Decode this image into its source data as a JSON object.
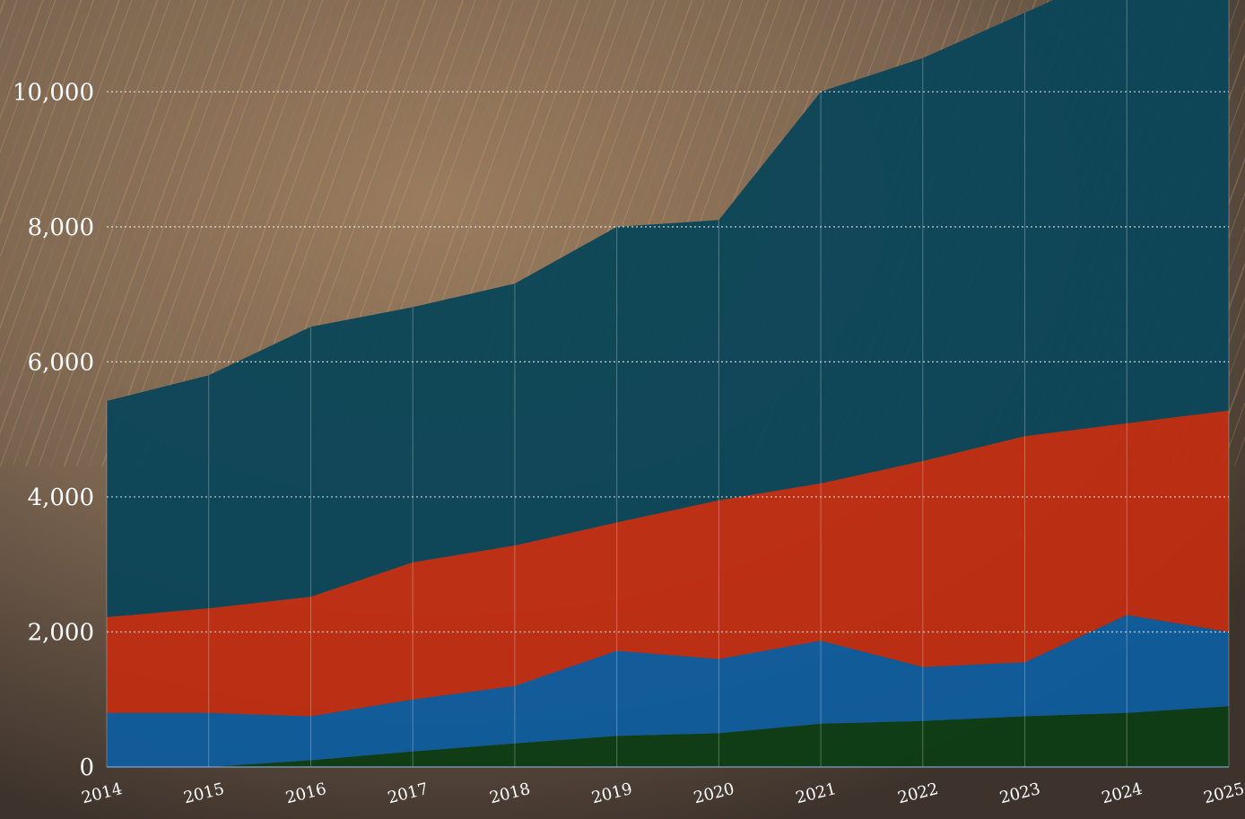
{
  "chart_data": {
    "type": "area",
    "stacked": true,
    "x": [
      "2014",
      "2015",
      "2016",
      "2017",
      "2018",
      "2019",
      "2020",
      "2021",
      "2022",
      "2023",
      "2024",
      "2025"
    ],
    "yticks": [
      "0",
      "2,000",
      "4,000",
      "6,000",
      "8,000",
      "10,000"
    ],
    "ylim": [
      0,
      11200
    ],
    "grid": "horizontal dotted",
    "legend": "none",
    "title": "",
    "xlabel": "",
    "ylabel": "",
    "series": [
      {
        "color": "#0d3d14",
        "values": [
          0,
          0,
          100,
          230,
          350,
          460,
          500,
          640,
          680,
          750,
          800,
          900
        ]
      },
      {
        "color": "#0f5d9e",
        "values": [
          800,
          800,
          650,
          770,
          850,
          1260,
          1100,
          1230,
          800,
          800,
          1450,
          1100
        ]
      },
      {
        "color": "#c02d12",
        "values": [
          1420,
          1550,
          1770,
          2030,
          2080,
          1900,
          2350,
          2330,
          3050,
          3350,
          2840,
          3280
        ]
      },
      {
        "color": "#0b4658",
        "values": [
          3200,
          3450,
          4000,
          3780,
          3880,
          4380,
          4150,
          5800,
          5970,
          6270,
          6760,
          6610
        ]
      }
    ]
  }
}
